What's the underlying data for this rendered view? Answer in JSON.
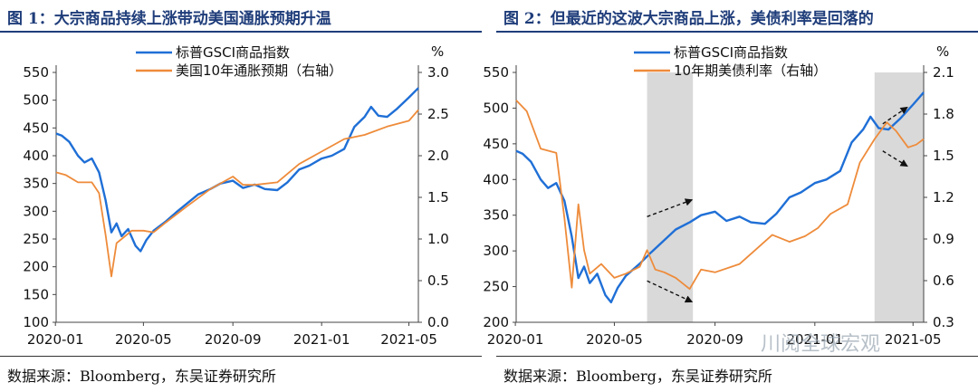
{
  "charts": [
    {
      "title": "图 1：大宗商品持续上涨带动美国通胀预期升温",
      "source": "数据来源：Bloomberg，东吴证券研究所",
      "chart_data": {
        "type": "line",
        "x_ticks": [
          "2020-01",
          "2020-05",
          "2020-09",
          "2021-01",
          "2021-05"
        ],
        "x_range": [
          "2020-01-02",
          "2021-05-14"
        ],
        "y_left": {
          "range": [
            100,
            550
          ],
          "ticks": [
            100,
            150,
            200,
            250,
            300,
            350,
            400,
            450,
            500,
            550
          ]
        },
        "y_right": {
          "range": [
            0.0,
            3.0
          ],
          "ticks": [
            "0.0",
            "0.5",
            "1.0",
            "1.5",
            "2.0",
            "2.5",
            "3.0"
          ],
          "unit": "%"
        },
        "series": [
          {
            "name": "标普GSCI商品指数",
            "axis": "left",
            "color": "#1f6fd6",
            "points": [
              [
                "2020-01-02",
                440
              ],
              [
                "2020-01-10",
                436
              ],
              [
                "2020-01-20",
                425
              ],
              [
                "2020-02-01",
                400
              ],
              [
                "2020-02-10",
                388
              ],
              [
                "2020-02-20",
                395
              ],
              [
                "2020-03-01",
                370
              ],
              [
                "2020-03-10",
                320
              ],
              [
                "2020-03-18",
                262
              ],
              [
                "2020-03-25",
                278
              ],
              [
                "2020-04-01",
                255
              ],
              [
                "2020-04-10",
                268
              ],
              [
                "2020-04-20",
                238
              ],
              [
                "2020-04-27",
                228
              ],
              [
                "2020-05-05",
                248
              ],
              [
                "2020-05-15",
                265
              ],
              [
                "2020-06-01",
                282
              ],
              [
                "2020-06-15",
                298
              ],
              [
                "2020-07-01",
                315
              ],
              [
                "2020-07-15",
                330
              ],
              [
                "2020-08-01",
                340
              ],
              [
                "2020-08-15",
                350
              ],
              [
                "2020-09-01",
                355
              ],
              [
                "2020-09-15",
                342
              ],
              [
                "2020-10-01",
                348
              ],
              [
                "2020-10-15",
                340
              ],
              [
                "2020-11-01",
                338
              ],
              [
                "2020-11-15",
                352
              ],
              [
                "2020-12-01",
                375
              ],
              [
                "2020-12-15",
                382
              ],
              [
                "2021-01-01",
                395
              ],
              [
                "2021-01-15",
                400
              ],
              [
                "2021-02-01",
                412
              ],
              [
                "2021-02-15",
                452
              ],
              [
                "2021-03-01",
                470
              ],
              [
                "2021-03-10",
                488
              ],
              [
                "2021-03-20",
                472
              ],
              [
                "2021-04-01",
                470
              ],
              [
                "2021-04-15",
                485
              ],
              [
                "2021-05-01",
                505
              ],
              [
                "2021-05-14",
                522
              ]
            ]
          },
          {
            "name": "美国10年通胀预期（右轴）",
            "axis": "right",
            "color": "#ee8b3a",
            "points": [
              [
                "2020-01-02",
                1.8
              ],
              [
                "2020-01-15",
                1.77
              ],
              [
                "2020-02-01",
                1.68
              ],
              [
                "2020-02-20",
                1.68
              ],
              [
                "2020-03-01",
                1.55
              ],
              [
                "2020-03-10",
                1.05
              ],
              [
                "2020-03-18",
                0.55
              ],
              [
                "2020-03-25",
                0.95
              ],
              [
                "2020-04-01",
                1.0
              ],
              [
                "2020-04-15",
                1.1
              ],
              [
                "2020-05-01",
                1.1
              ],
              [
                "2020-05-15",
                1.08
              ],
              [
                "2020-06-01",
                1.2
              ],
              [
                "2020-07-01",
                1.4
              ],
              [
                "2020-08-01",
                1.6
              ],
              [
                "2020-09-01",
                1.75
              ],
              [
                "2020-09-15",
                1.65
              ],
              [
                "2020-10-01",
                1.65
              ],
              [
                "2020-11-01",
                1.68
              ],
              [
                "2020-12-01",
                1.9
              ],
              [
                "2021-01-01",
                2.05
              ],
              [
                "2021-02-01",
                2.2
              ],
              [
                "2021-03-01",
                2.25
              ],
              [
                "2021-04-01",
                2.35
              ],
              [
                "2021-05-01",
                2.42
              ],
              [
                "2021-05-14",
                2.55
              ]
            ]
          }
        ]
      }
    },
    {
      "title": "图 2：但最近的这波大宗商品上涨，美债利率是回落的",
      "source": "数据来源：Bloomberg，东吴证券研究所",
      "chart_data": {
        "type": "line",
        "x_ticks": [
          "2020-01",
          "2020-05",
          "2020-09",
          "2021-01",
          "2021-05"
        ],
        "x_range": [
          "2020-01-02",
          "2021-05-14"
        ],
        "y_left": {
          "range": [
            200,
            550
          ],
          "ticks": [
            200,
            250,
            300,
            350,
            400,
            450,
            500,
            550
          ]
        },
        "y_right": {
          "range": [
            0.3,
            2.1
          ],
          "ticks": [
            "0.3",
            "0.6",
            "0.9",
            "1.2",
            "1.5",
            "1.8",
            "2.1"
          ],
          "unit": "%"
        },
        "shaded_periods": [
          [
            "2020-06-10",
            "2020-08-05"
          ],
          [
            "2021-03-15",
            "2021-05-14"
          ]
        ],
        "trend_arrows": [
          {
            "from": [
              "2020-06-10",
              348
            ],
            "to": [
              "2020-08-05",
              372
            ]
          },
          {
            "from": [
              "2020-06-10",
              258
            ],
            "to": [
              "2020-08-05",
              228
            ]
          },
          {
            "from": [
              "2021-03-25",
              478
            ],
            "to": [
              "2021-04-25",
              502
            ]
          },
          {
            "from": [
              "2021-03-25",
              440
            ],
            "to": [
              "2021-04-25",
              418
            ]
          }
        ],
        "series": [
          {
            "name": "标普GSCI商品指数",
            "axis": "left",
            "color": "#1f6fd6",
            "points": [
              [
                "2020-01-02",
                440
              ],
              [
                "2020-01-10",
                436
              ],
              [
                "2020-01-20",
                425
              ],
              [
                "2020-02-01",
                400
              ],
              [
                "2020-02-10",
                388
              ],
              [
                "2020-02-20",
                395
              ],
              [
                "2020-03-01",
                370
              ],
              [
                "2020-03-10",
                320
              ],
              [
                "2020-03-18",
                262
              ],
              [
                "2020-03-25",
                278
              ],
              [
                "2020-04-01",
                255
              ],
              [
                "2020-04-10",
                268
              ],
              [
                "2020-04-20",
                238
              ],
              [
                "2020-04-27",
                228
              ],
              [
                "2020-05-05",
                248
              ],
              [
                "2020-05-15",
                265
              ],
              [
                "2020-06-01",
                282
              ],
              [
                "2020-06-15",
                298
              ],
              [
                "2020-07-01",
                315
              ],
              [
                "2020-07-15",
                330
              ],
              [
                "2020-08-01",
                340
              ],
              [
                "2020-08-15",
                350
              ],
              [
                "2020-09-01",
                355
              ],
              [
                "2020-09-15",
                342
              ],
              [
                "2020-10-01",
                348
              ],
              [
                "2020-10-15",
                340
              ],
              [
                "2020-11-01",
                338
              ],
              [
                "2020-11-15",
                352
              ],
              [
                "2020-12-01",
                375
              ],
              [
                "2020-12-15",
                382
              ],
              [
                "2021-01-01",
                395
              ],
              [
                "2021-01-15",
                400
              ],
              [
                "2021-02-01",
                412
              ],
              [
                "2021-02-15",
                452
              ],
              [
                "2021-03-01",
                470
              ],
              [
                "2021-03-10",
                488
              ],
              [
                "2021-03-20",
                472
              ],
              [
                "2021-04-01",
                470
              ],
              [
                "2021-04-15",
                485
              ],
              [
                "2021-05-01",
                505
              ],
              [
                "2021-05-14",
                522
              ]
            ]
          },
          {
            "name": "10年期美债利率（右轴）",
            "axis": "right",
            "color": "#ee8b3a",
            "points": [
              [
                "2020-01-02",
                1.9
              ],
              [
                "2020-01-15",
                1.82
              ],
              [
                "2020-02-01",
                1.55
              ],
              [
                "2020-02-20",
                1.52
              ],
              [
                "2020-03-01",
                1.05
              ],
              [
                "2020-03-10",
                0.55
              ],
              [
                "2020-03-18",
                1.15
              ],
              [
                "2020-03-25",
                0.82
              ],
              [
                "2020-04-01",
                0.65
              ],
              [
                "2020-04-15",
                0.72
              ],
              [
                "2020-05-01",
                0.62
              ],
              [
                "2020-05-15",
                0.65
              ],
              [
                "2020-06-01",
                0.7
              ],
              [
                "2020-06-10",
                0.82
              ],
              [
                "2020-06-20",
                0.68
              ],
              [
                "2020-07-01",
                0.66
              ],
              [
                "2020-07-15",
                0.62
              ],
              [
                "2020-08-01",
                0.54
              ],
              [
                "2020-08-15",
                0.68
              ],
              [
                "2020-09-01",
                0.66
              ],
              [
                "2020-10-01",
                0.72
              ],
              [
                "2020-10-20",
                0.82
              ],
              [
                "2020-11-10",
                0.93
              ],
              [
                "2020-12-01",
                0.88
              ],
              [
                "2020-12-20",
                0.92
              ],
              [
                "2021-01-05",
                0.98
              ],
              [
                "2021-01-20",
                1.08
              ],
              [
                "2021-02-10",
                1.15
              ],
              [
                "2021-02-25",
                1.45
              ],
              [
                "2021-03-15",
                1.62
              ],
              [
                "2021-03-30",
                1.74
              ],
              [
                "2021-04-10",
                1.68
              ],
              [
                "2021-04-25",
                1.56
              ],
              [
                "2021-05-05",
                1.58
              ],
              [
                "2021-05-14",
                1.62
              ]
            ]
          }
        ]
      }
    }
  ],
  "watermark": "川阅全球宏观"
}
